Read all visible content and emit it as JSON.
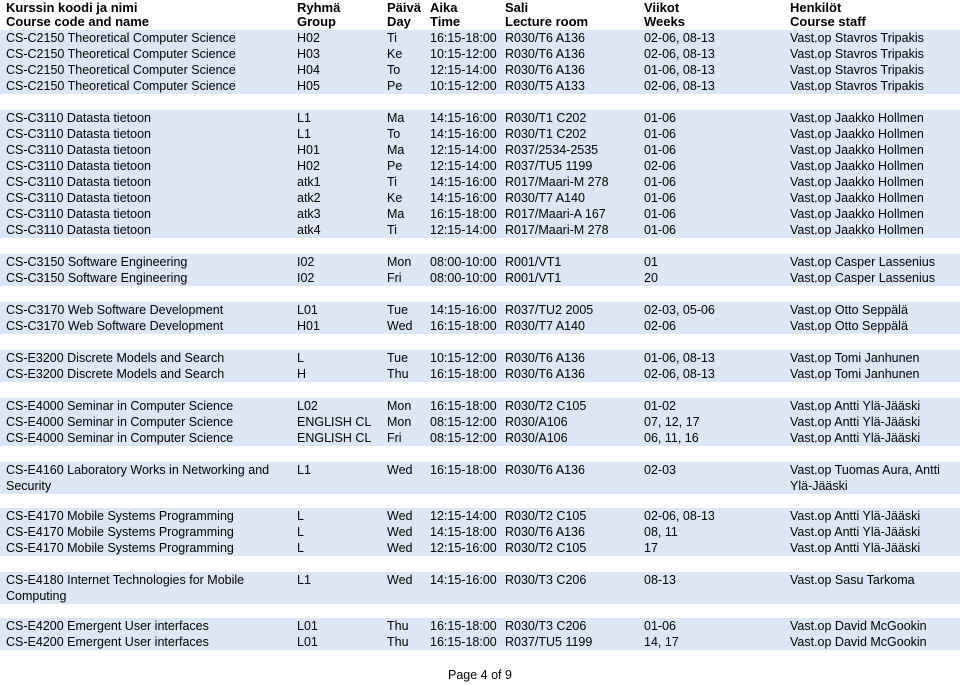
{
  "header": {
    "col0": [
      "Kurssin koodi ja nimi",
      "Course code and name"
    ],
    "col1": [
      "Ryhmä",
      "Group"
    ],
    "col2": [
      "Päivä",
      "Day"
    ],
    "col3": [
      "Aika",
      "Time"
    ],
    "col4": [
      "Sali",
      "Lecture room"
    ],
    "col5": [
      "Viikot",
      "Weeks"
    ],
    "col6": [
      "Henkilöt",
      "Course staff"
    ]
  },
  "shade_color": "#dde6f4",
  "rows": [
    {
      "course": "CS-C2150 Theoretical Computer Science",
      "group": "H02",
      "day": "Ti",
      "time": "16:15-18:00",
      "room": "R030/T6 A136",
      "weeks": "02-06, 08-13",
      "staff": "Vast.op Stavros Tripakis"
    },
    {
      "course": "CS-C2150 Theoretical Computer Science",
      "group": "H03",
      "day": "Ke",
      "time": "10:15-12:00",
      "room": "R030/T6 A136",
      "weeks": "02-06, 08-13",
      "staff": "Vast.op Stavros Tripakis"
    },
    {
      "course": "CS-C2150 Theoretical Computer Science",
      "group": "H04",
      "day": "To",
      "time": "12:15-14:00",
      "room": "R030/T6 A136",
      "weeks": "01-06, 08-13",
      "staff": "Vast.op Stavros Tripakis"
    },
    {
      "course": "CS-C2150 Theoretical Computer Science",
      "group": "H05",
      "day": "Pe",
      "time": "10:15-12:00",
      "room": "R030/T5 A133",
      "weeks": "02-06, 08-13",
      "staff": "Vast.op Stavros Tripakis"
    },
    {
      "gap": true
    },
    {
      "course": "CS-C3110 Datasta tietoon",
      "group": "L1",
      "day": "Ma",
      "time": "14:15-16:00",
      "room": "R030/T1 C202",
      "weeks": "01-06",
      "staff": "Vast.op Jaakko Hollmen"
    },
    {
      "course": "CS-C3110 Datasta tietoon",
      "group": "L1",
      "day": "To",
      "time": "14:15-16:00",
      "room": "R030/T1 C202",
      "weeks": "01-06",
      "staff": "Vast.op Jaakko Hollmen"
    },
    {
      "course": "CS-C3110 Datasta tietoon",
      "group": "H01",
      "day": "Ma",
      "time": "12:15-14:00",
      "room": "R037/2534-2535",
      "weeks": "01-06",
      "staff": "Vast.op Jaakko Hollmen"
    },
    {
      "course": "CS-C3110 Datasta tietoon",
      "group": "H02",
      "day": "Pe",
      "time": "12:15-14:00",
      "room": "R037/TU5 1199",
      "weeks": "02-06",
      "staff": "Vast.op Jaakko Hollmen"
    },
    {
      "course": "CS-C3110 Datasta tietoon",
      "group": "atk1",
      "day": "Ti",
      "time": "14:15-16:00",
      "room": "R017/Maari-M 278",
      "weeks": "01-06",
      "staff": "Vast.op Jaakko Hollmen"
    },
    {
      "course": "CS-C3110 Datasta tietoon",
      "group": "atk2",
      "day": "Ke",
      "time": "14:15-16:00",
      "room": "R030/T7 A140",
      "weeks": "01-06",
      "staff": "Vast.op Jaakko Hollmen"
    },
    {
      "course": "CS-C3110 Datasta tietoon",
      "group": "atk3",
      "day": "Ma",
      "time": "16:15-18:00",
      "room": "R017/Maari-A 167",
      "weeks": "01-06",
      "staff": "Vast.op Jaakko Hollmen"
    },
    {
      "course": "CS-C3110 Datasta tietoon",
      "group": "atk4",
      "day": "Ti",
      "time": "12:15-14:00",
      "room": "R017/Maari-M 278",
      "weeks": "01-06",
      "staff": "Vast.op Jaakko Hollmen"
    },
    {
      "gap": true
    },
    {
      "course": "CS-C3150 Software Engineering",
      "group": "I02",
      "day": "Mon",
      "time": "08:00-10:00",
      "room": "R001/VT1",
      "weeks": "01",
      "staff": "Vast.op Casper Lassenius"
    },
    {
      "course": "CS-C3150 Software Engineering",
      "group": "I02",
      "day": "Fri",
      "time": "08:00-10:00",
      "room": "R001/VT1",
      "weeks": "20",
      "staff": "Vast.op Casper Lassenius"
    },
    {
      "gap": true
    },
    {
      "course": "CS-C3170 Web Software Development",
      "group": "L01",
      "day": "Tue",
      "time": "14:15-16:00",
      "room": "R037/TU2 2005",
      "weeks": "02-03, 05-06",
      "staff": "Vast.op Otto Seppälä"
    },
    {
      "course": "CS-C3170 Web Software Development",
      "group": "H01",
      "day": "Wed",
      "time": "16:15-18:00",
      "room": "R030/T7 A140",
      "weeks": "02-06",
      "staff": "Vast.op Otto Seppälä"
    },
    {
      "gap": true
    },
    {
      "course": "CS-E3200 Discrete Models and Search",
      "group": "L",
      "day": "Tue",
      "time": "10:15-12:00",
      "room": "R030/T6 A136",
      "weeks": "01-06, 08-13",
      "staff": "Vast.op Tomi Janhunen"
    },
    {
      "course": "CS-E3200 Discrete Models and Search",
      "group": "H",
      "day": "Thu",
      "time": "16:15-18:00",
      "room": "R030/T6 A136",
      "weeks": "02-06, 08-13",
      "staff": "Vast.op Tomi Janhunen"
    },
    {
      "gap": true
    },
    {
      "course": "CS-E4000 Seminar in Computer Science",
      "group": "L02",
      "day": "Mon",
      "time": "16:15-18:00",
      "room": "R030/T2 C105",
      "weeks": "01-02",
      "staff": "Vast.op Antti Ylä-Jääski"
    },
    {
      "course": "CS-E4000 Seminar in Computer Science",
      "group": "ENGLISH CL",
      "day": "Mon",
      "time": "08:15-12:00",
      "room": "R030/A106",
      "weeks": "07, 12, 17",
      "staff": "Vast.op Antti Ylä-Jääski"
    },
    {
      "course": "CS-E4000 Seminar in Computer Science",
      "group": "ENGLISH CL",
      "day": "Fri",
      "time": "08:15-12:00",
      "room": "R030/A106",
      "weeks": "06, 11, 16",
      "staff": "Vast.op Antti Ylä-Jääski"
    },
    {
      "gap": true
    },
    {
      "tall": true,
      "course": "CS-E4160 Laboratory Works in Networking and Security",
      "group": "L1",
      "day": "Wed",
      "time": "16:15-18:00",
      "room": "R030/T6 A136",
      "weeks": "02-03",
      "staff": "Vast.op Tuomas Aura, Antti Ylä-Jääski"
    },
    {
      "gap": true,
      "small": true
    },
    {
      "course": "CS-E4170 Mobile Systems Programming",
      "group": "L",
      "day": "Wed",
      "time": "12:15-14:00",
      "room": "R030/T2 C105",
      "weeks": "02-06, 08-13",
      "staff": "Vast.op Antti Ylä-Jääski"
    },
    {
      "course": "CS-E4170 Mobile Systems Programming",
      "group": "L",
      "day": "Wed",
      "time": "14:15-18:00",
      "room": "R030/T6 A136",
      "weeks": "08, 11",
      "staff": "Vast.op Antti Ylä-Jääski"
    },
    {
      "course": "CS-E4170 Mobile Systems Programming",
      "group": "L",
      "day": "Wed",
      "time": "12:15-16:00",
      "room": "R030/T2 C105",
      "weeks": "17",
      "staff": "Vast.op Antti Ylä-Jääski"
    },
    {
      "gap": true
    },
    {
      "tall": true,
      "course": "CS-E4180 Internet Technologies for Mobile Computing",
      "group": "L1",
      "day": "Wed",
      "time": "14:15-16:00",
      "room": "R030/T3 C206",
      "weeks": "08-13",
      "staff": "Vast.op Sasu Tarkoma"
    },
    {
      "gap": true,
      "small": true
    },
    {
      "course": "CS-E4200 Emergent User interfaces",
      "group": "L01",
      "day": "Thu",
      "time": "16:15-18:00",
      "room": "R030/T3 C206",
      "weeks": "01-06",
      "staff": "Vast.op David McGookin"
    },
    {
      "course": "CS-E4200 Emergent User interfaces",
      "group": "L01",
      "day": "Thu",
      "time": "16:15-18:00",
      "room": "R037/TU5 1199",
      "weeks": "14, 17",
      "staff": "Vast.op David McGookin"
    }
  ],
  "footer": "Page 4 of 9"
}
